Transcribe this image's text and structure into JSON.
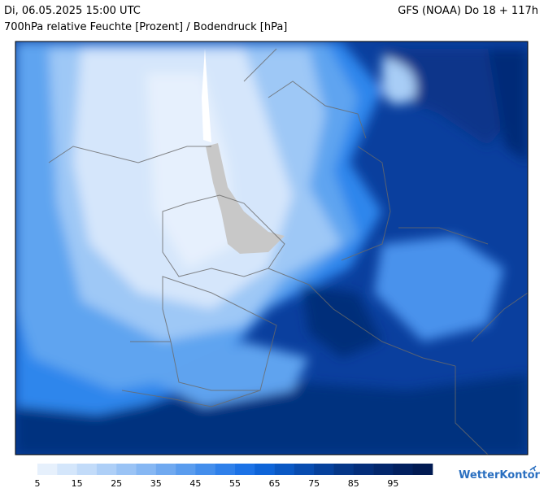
{
  "header": {
    "left": "Di, 06.05.2025 15:00 UTC",
    "right": "GFS (NOAA) Do 18 + 117h",
    "subtitle": "700hPa relative Feuchte [Prozent] / Bodendruck [hPa]"
  },
  "legend": {
    "labels": [
      "5",
      "15",
      "25",
      "35",
      "45",
      "55",
      "65",
      "75",
      "85",
      "95"
    ]
  },
  "logo": "WetterKontor"
}
